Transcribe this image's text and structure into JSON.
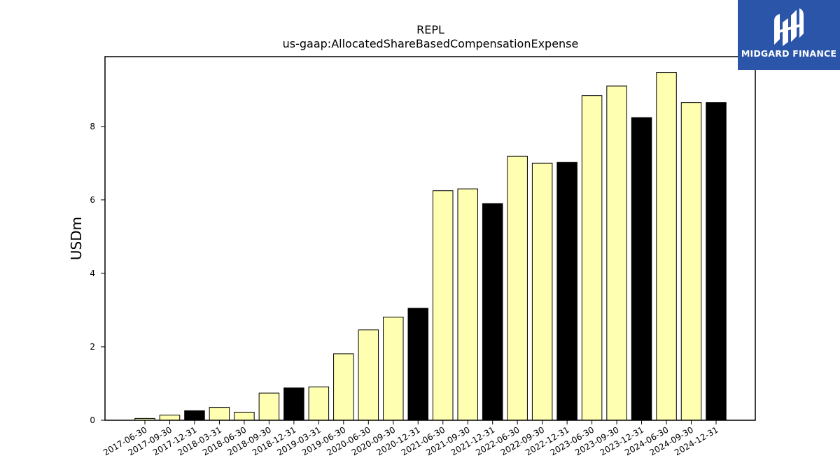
{
  "chart_data": {
    "type": "bar",
    "title": "REPL",
    "subtitle": "us-gaap:AllocatedShareBasedCompensationExpense",
    "xlabel": "",
    "ylabel": "USDm",
    "ylim": [
      0,
      9.9
    ],
    "yticks": [
      0,
      2,
      4,
      6,
      8
    ],
    "grid": false,
    "categories": [
      "2017-06-30",
      "2017-09-30",
      "2017-12-31",
      "2018-03-31",
      "2018-06-30",
      "2018-09-30",
      "2018-12-31",
      "2019-03-31",
      "2019-06-30",
      "2020-06-30",
      "2020-09-30",
      "2020-12-31",
      "2021-06-30",
      "2021-09-30",
      "2021-12-31",
      "2022-06-30",
      "2022-09-30",
      "2022-12-31",
      "2023-06-30",
      "2023-09-30",
      "2023-12-31",
      "2024-06-30",
      "2024-09-30",
      "2024-12-31"
    ],
    "values": [
      0.05,
      0.14,
      0.26,
      0.35,
      0.22,
      0.74,
      0.88,
      0.91,
      1.81,
      2.46,
      2.81,
      3.05,
      6.25,
      6.3,
      5.9,
      7.19,
      7.0,
      7.02,
      8.84,
      9.1,
      8.24,
      9.47,
      8.65,
      8.65
    ],
    "bar_colors": [
      "#ffffb2",
      "#ffffb2",
      "#000000",
      "#ffffb2",
      "#ffffb2",
      "#ffffb2",
      "#000000",
      "#ffffb2",
      "#ffffb2",
      "#ffffb2",
      "#ffffb2",
      "#000000",
      "#ffffb2",
      "#ffffb2",
      "#000000",
      "#ffffb2",
      "#ffffb2",
      "#000000",
      "#ffffb2",
      "#ffffb2",
      "#000000",
      "#ffffb2",
      "#ffffb2",
      "#000000"
    ]
  },
  "logo": {
    "text": "MIDGARD FINANCE",
    "background": "#2a55a8"
  }
}
